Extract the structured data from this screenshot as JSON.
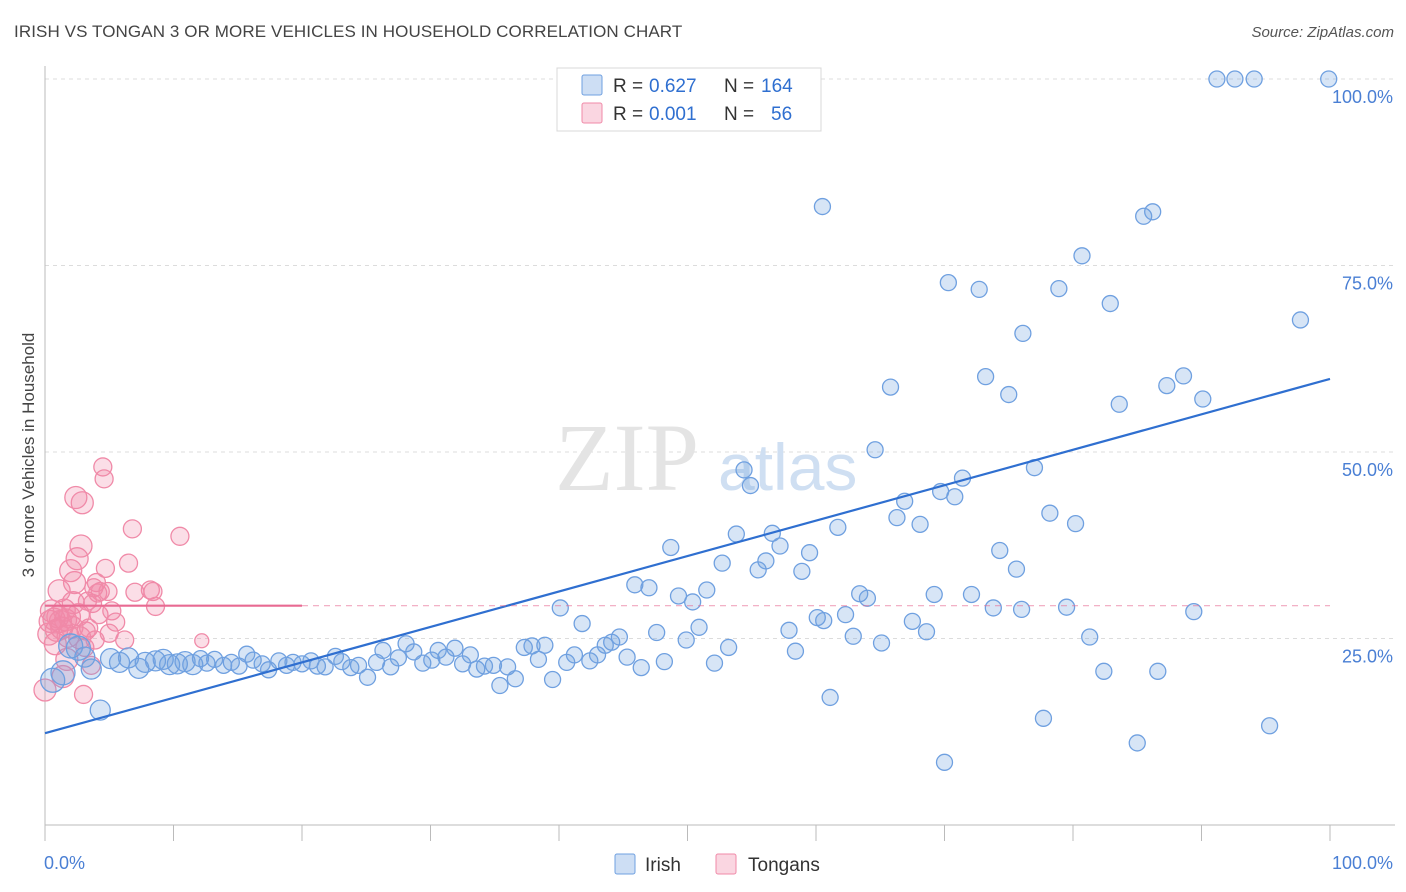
{
  "title": "IRISH VS TONGAN 3 OR MORE VEHICLES IN HOUSEHOLD CORRELATION CHART",
  "source": "Source: ZipAtlas.com",
  "watermark": {
    "zip": "ZIP",
    "atlas": "atlas"
  },
  "legend_top": {
    "rows": [
      {
        "r_label": "R =",
        "r_value": "0.627",
        "n_label": "N =",
        "n_value": "164",
        "color": "#6fa0e0"
      },
      {
        "r_label": "R =",
        "r_value": "0.001",
        "n_label": "N =",
        "n_value": "56",
        "color": "#f08aa8"
      }
    ]
  },
  "colors": {
    "irish": "#6fa0e0",
    "irish_line": "#2f6fd0",
    "tongan": "#f08aa8",
    "tongan_line": "#e86a92",
    "axis_text": "#4a7fd4"
  },
  "chart_data": {
    "type": "scatter",
    "ylabel": "3 or more Vehicles in Household",
    "xlabel": "",
    "xlim": [
      0,
      100
    ],
    "ylim": [
      0,
      100
    ],
    "x_tick_labels": {
      "left": "0.0%",
      "right": "100.0%"
    },
    "y_ticks": [
      25,
      50,
      75,
      100
    ],
    "y_tick_labels": [
      "25.0%",
      "50.0%",
      "75.0%",
      "100.0%"
    ],
    "grid": true,
    "legend_position": "bottom",
    "series": [
      {
        "name": "Irish",
        "trend": {
          "x": [
            0,
            100
          ],
          "y": [
            12.3,
            59.8
          ]
        },
        "points": [
          [
            0.6,
            19.4
          ],
          [
            1.4,
            20.4
          ],
          [
            2.0,
            24.0
          ],
          [
            2.6,
            23.7
          ],
          [
            3.1,
            22.5
          ],
          [
            3.6,
            20.9
          ],
          [
            4.3,
            15.4
          ],
          [
            5.1,
            22.3
          ],
          [
            5.8,
            21.8
          ],
          [
            6.5,
            22.4
          ],
          [
            7.3,
            21.0
          ],
          [
            7.8,
            21.8
          ],
          [
            8.6,
            22.0
          ],
          [
            9.2,
            22.2
          ],
          [
            9.7,
            21.5
          ],
          [
            10.3,
            21.6
          ],
          [
            10.9,
            21.9
          ],
          [
            11.5,
            21.5
          ],
          [
            12.1,
            22.3
          ],
          [
            12.6,
            21.7
          ],
          [
            13.2,
            22.2
          ],
          [
            13.9,
            21.4
          ],
          [
            14.5,
            21.8
          ],
          [
            15.1,
            21.3
          ],
          [
            15.7,
            22.9
          ],
          [
            16.2,
            22.1
          ],
          [
            16.9,
            21.6
          ],
          [
            17.4,
            20.8
          ],
          [
            18.2,
            22.0
          ],
          [
            18.8,
            21.4
          ],
          [
            19.3,
            21.8
          ],
          [
            20.0,
            21.6
          ],
          [
            20.7,
            22.0
          ],
          [
            21.2,
            21.3
          ],
          [
            21.8,
            21.2
          ],
          [
            22.6,
            22.6
          ],
          [
            23.1,
            21.9
          ],
          [
            23.8,
            21.1
          ],
          [
            24.4,
            21.4
          ],
          [
            25.1,
            19.8
          ],
          [
            25.8,
            21.8
          ],
          [
            26.3,
            23.4
          ],
          [
            26.9,
            21.2
          ],
          [
            27.5,
            22.4
          ],
          [
            28.1,
            24.3
          ],
          [
            28.7,
            23.2
          ],
          [
            29.4,
            21.7
          ],
          [
            30.1,
            22.1
          ],
          [
            30.6,
            23.4
          ],
          [
            31.2,
            22.5
          ],
          [
            31.9,
            23.7
          ],
          [
            32.5,
            21.6
          ],
          [
            33.1,
            22.8
          ],
          [
            33.6,
            20.9
          ],
          [
            34.2,
            21.3
          ],
          [
            34.9,
            21.4
          ],
          [
            35.4,
            18.7
          ],
          [
            36.0,
            21.2
          ],
          [
            36.6,
            19.6
          ],
          [
            37.3,
            23.8
          ],
          [
            37.9,
            24.0
          ],
          [
            38.4,
            22.2
          ],
          [
            38.9,
            24.1
          ],
          [
            39.5,
            19.5
          ],
          [
            40.1,
            29.1
          ],
          [
            40.6,
            21.8
          ],
          [
            41.2,
            22.8
          ],
          [
            41.8,
            27.0
          ],
          [
            42.4,
            22.0
          ],
          [
            43.0,
            22.8
          ],
          [
            43.6,
            24.1
          ],
          [
            44.1,
            24.5
          ],
          [
            44.7,
            25.2
          ],
          [
            45.3,
            22.5
          ],
          [
            45.9,
            32.2
          ],
          [
            46.4,
            21.1
          ],
          [
            47.0,
            31.8
          ],
          [
            47.6,
            25.8
          ],
          [
            48.2,
            21.9
          ],
          [
            48.7,
            37.2
          ],
          [
            49.3,
            30.7
          ],
          [
            49.9,
            24.8
          ],
          [
            50.4,
            29.9
          ],
          [
            50.9,
            26.5
          ],
          [
            51.5,
            31.5
          ],
          [
            52.1,
            21.7
          ],
          [
            52.7,
            35.1
          ],
          [
            53.2,
            23.8
          ],
          [
            53.8,
            39.0
          ],
          [
            54.4,
            47.6
          ],
          [
            54.9,
            45.5
          ],
          [
            55.5,
            34.2
          ],
          [
            56.1,
            35.4
          ],
          [
            56.6,
            39.1
          ],
          [
            57.2,
            37.4
          ],
          [
            57.9,
            26.1
          ],
          [
            58.4,
            23.3
          ],
          [
            58.9,
            34.0
          ],
          [
            59.5,
            36.5
          ],
          [
            60.1,
            27.8
          ],
          [
            60.6,
            27.4
          ],
          [
            61.1,
            17.1
          ],
          [
            61.7,
            39.9
          ],
          [
            62.3,
            28.2
          ],
          [
            62.9,
            25.3
          ],
          [
            63.4,
            31.0
          ],
          [
            64.0,
            30.4
          ],
          [
            64.6,
            50.3
          ],
          [
            65.1,
            24.4
          ],
          [
            65.8,
            58.7
          ],
          [
            66.3,
            41.2
          ],
          [
            66.9,
            43.4
          ],
          [
            67.5,
            27.3
          ],
          [
            68.1,
            40.3
          ],
          [
            68.6,
            25.9
          ],
          [
            69.2,
            30.9
          ],
          [
            69.7,
            44.7
          ],
          [
            70.3,
            72.7
          ],
          [
            70.8,
            44.0
          ],
          [
            71.4,
            46.5
          ],
          [
            72.1,
            30.9
          ],
          [
            72.7,
            71.8
          ],
          [
            73.2,
            60.1
          ],
          [
            73.8,
            29.1
          ],
          [
            74.3,
            36.8
          ],
          [
            75.0,
            57.7
          ],
          [
            75.6,
            34.3
          ],
          [
            76.1,
            65.9
          ],
          [
            77.0,
            47.9
          ],
          [
            77.7,
            14.3
          ],
          [
            78.2,
            41.8
          ],
          [
            78.9,
            71.9
          ],
          [
            79.5,
            29.2
          ],
          [
            80.2,
            40.4
          ],
          [
            80.7,
            76.3
          ],
          [
            81.3,
            25.2
          ],
          [
            82.4,
            20.6
          ],
          [
            82.9,
            69.9
          ],
          [
            83.6,
            56.4
          ],
          [
            85.0,
            11.0
          ],
          [
            85.5,
            81.6
          ],
          [
            86.2,
            82.2
          ],
          [
            86.6,
            20.6
          ],
          [
            87.3,
            58.9
          ],
          [
            88.6,
            60.2
          ],
          [
            89.4,
            28.6
          ],
          [
            90.1,
            57.1
          ],
          [
            91.2,
            100.0
          ],
          [
            92.6,
            100.0
          ],
          [
            94.1,
            100.0
          ],
          [
            95.3,
            13.3
          ],
          [
            97.7,
            67.7
          ],
          [
            99.9,
            100.0
          ],
          [
            60.5,
            82.9
          ],
          [
            70.0,
            8.4
          ],
          [
            76.0,
            28.9
          ]
        ]
      },
      {
        "name": "Tongans",
        "trend": {
          "x": [
            0,
            20
          ],
          "y": [
            29.4,
            29.4
          ]
        },
        "points": [
          [
            0.0,
            18.1
          ],
          [
            0.3,
            25.6
          ],
          [
            0.4,
            27.3
          ],
          [
            0.5,
            28.7
          ],
          [
            0.7,
            27.6
          ],
          [
            0.8,
            24.3
          ],
          [
            0.9,
            26.1
          ],
          [
            1.0,
            27.9
          ],
          [
            1.1,
            31.4
          ],
          [
            1.2,
            27.3
          ],
          [
            1.3,
            26.4
          ],
          [
            1.4,
            19.9
          ],
          [
            1.5,
            28.8
          ],
          [
            1.6,
            27.5
          ],
          [
            1.7,
            22.2
          ],
          [
            1.8,
            25.3
          ],
          [
            1.9,
            27.9
          ],
          [
            2.0,
            34.1
          ],
          [
            2.1,
            26.5
          ],
          [
            2.2,
            29.8
          ],
          [
            2.3,
            32.5
          ],
          [
            2.4,
            43.9
          ],
          [
            2.5,
            35.7
          ],
          [
            2.6,
            28.2
          ],
          [
            2.7,
            25.1
          ],
          [
            2.8,
            37.4
          ],
          [
            2.9,
            43.2
          ],
          [
            3.0,
            17.5
          ],
          [
            3.1,
            23.8
          ],
          [
            3.2,
            26.0
          ],
          [
            3.3,
            30.0
          ],
          [
            3.4,
            26.4
          ],
          [
            3.6,
            21.4
          ],
          [
            3.7,
            29.7
          ],
          [
            3.8,
            31.8
          ],
          [
            3.9,
            24.8
          ],
          [
            4.0,
            32.5
          ],
          [
            4.1,
            31.1
          ],
          [
            4.2,
            28.2
          ],
          [
            4.3,
            31.3
          ],
          [
            4.5,
            48.0
          ],
          [
            4.6,
            46.4
          ],
          [
            4.7,
            34.4
          ],
          [
            4.9,
            31.3
          ],
          [
            5.0,
            25.7
          ],
          [
            5.2,
            28.7
          ],
          [
            5.5,
            27.2
          ],
          [
            6.2,
            24.8
          ],
          [
            6.5,
            35.1
          ],
          [
            6.8,
            39.7
          ],
          [
            7.0,
            31.2
          ],
          [
            8.2,
            31.5
          ],
          [
            8.4,
            31.3
          ],
          [
            8.6,
            29.3
          ],
          [
            10.5,
            38.7
          ],
          [
            12.2,
            24.7
          ]
        ]
      }
    ]
  },
  "legend_bottom": {
    "items": [
      "Irish",
      "Tongans"
    ]
  }
}
